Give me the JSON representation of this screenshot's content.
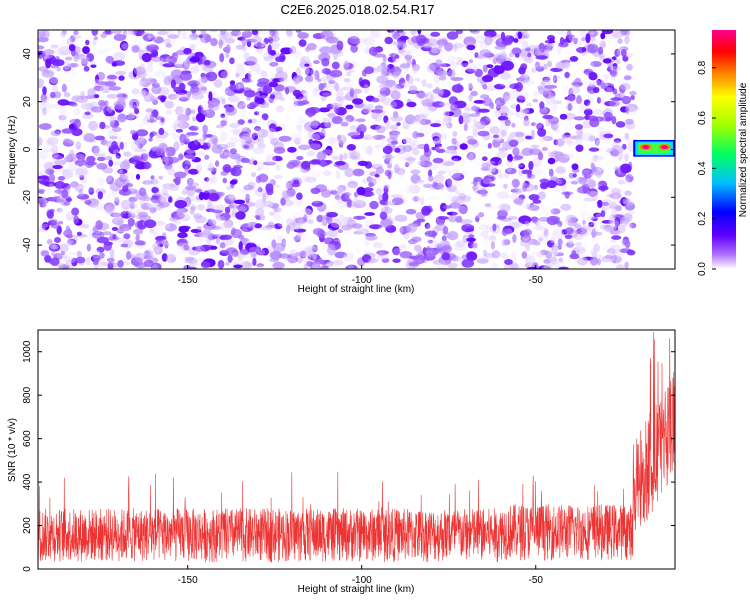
{
  "title": "C2E6.2025.018.02.54.R17",
  "chart_data": [
    {
      "type": "heatmap",
      "name": "spectrogram",
      "xlabel": "Height of straight line (km)",
      "ylabel": "Frequency (Hz)",
      "xlim": [
        -193,
        -10
      ],
      "ylim": [
        -50,
        50
      ],
      "xticks": [
        -150,
        -100,
        -50
      ],
      "yticks": [
        -40,
        -20,
        0,
        20,
        40
      ],
      "colorbar": {
        "label": "Normalized spectral amplitude",
        "range": [
          0,
          0.95
        ],
        "ticks": [
          0.0,
          0.2,
          0.4,
          0.6,
          0.8
        ],
        "colors": [
          "#ffffff",
          "#8000ff",
          "#0000ff",
          "#00c0ff",
          "#00ff00",
          "#ffff00",
          "#ff8000",
          "#ff0000",
          "#ff00a0"
        ]
      },
      "noise_region": {
        "x": [
          -193,
          -22
        ],
        "y": [
          -50,
          50
        ],
        "typical_amplitude": [
          0.0,
          0.2
        ]
      },
      "signal_band": {
        "x": [
          -22,
          -10
        ],
        "y": [
          -3,
          4
        ],
        "peak_amplitude": 0.9,
        "peak_frequency": 1
      }
    },
    {
      "type": "line",
      "name": "snr",
      "xlabel": "Height of straight line (km)",
      "ylabel": "SNR (10 * v/v)",
      "xlim": [
        -193,
        -10
      ],
      "ylim": [
        0,
        1100
      ],
      "xticks": [
        -150,
        -100,
        -50
      ],
      "yticks": [
        0,
        200,
        400,
        600,
        800,
        1000
      ],
      "color": "#ee3333",
      "segments": [
        {
          "x": [
            -193,
            -60
          ],
          "typical_range": [
            30,
            280
          ],
          "max_spike": 450
        },
        {
          "x": [
            -60,
            -22
          ],
          "typical_range": [
            40,
            300
          ],
          "max_spike": 470
        },
        {
          "x": [
            -22,
            -10
          ],
          "typical_range": [
            250,
            1000
          ],
          "max_spike": 1100
        }
      ]
    }
  ]
}
